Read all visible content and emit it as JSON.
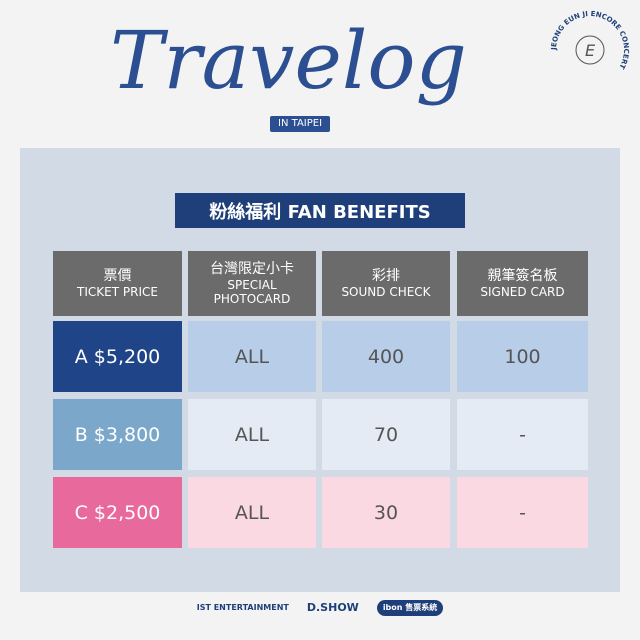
{
  "header": {
    "title": "Travelog",
    "subtitle": "IN TAIPEI",
    "seal_text": "JEONG EUN JI ENCORE CONCERT",
    "seal_letter": "E"
  },
  "banner": "粉絲福利 FAN BENEFITS",
  "columns": [
    {
      "zh": "票價",
      "en": "TICKET PRICE"
    },
    {
      "zh": "台灣限定小卡",
      "en": "SPECIAL PHOTOCARD"
    },
    {
      "zh": "彩排",
      "en": "SOUND CHECK"
    },
    {
      "zh": "親筆簽名板",
      "en": "SIGNED CARD"
    }
  ],
  "rows": [
    {
      "label": "A $5,200",
      "photocard": "ALL",
      "sound_check": "400",
      "signed_card": "100",
      "label_color": "#1f4488",
      "cell_color": "#b7cde8"
    },
    {
      "label": "B $3,800",
      "photocard": "ALL",
      "sound_check": "70",
      "signed_card": "-",
      "label_color": "#7ba7cb",
      "cell_color": "#e4ebf5"
    },
    {
      "label": "C $2,500",
      "photocard": "ALL",
      "sound_check": "30",
      "signed_card": "-",
      "label_color": "#e8699c",
      "cell_color": "#fbd9e3"
    }
  ],
  "footer": {
    "logo1": "IST ENTERTAINMENT",
    "logo2": "D.SHOW",
    "logo3": "ibon 售票系統"
  }
}
